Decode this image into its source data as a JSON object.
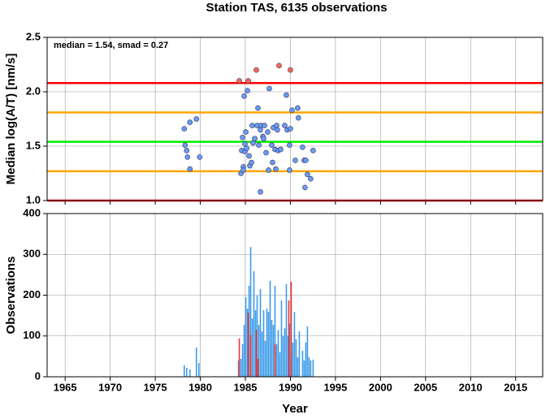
{
  "chart_data": [
    {
      "type": "scatter",
      "title": "Station TAS, 6135 observations",
      "ylabel": "Median log(A/T) [nm/s]",
      "annotation": "median = 1.54, smad = 0.27",
      "xlim": [
        1963,
        2018
      ],
      "xticks": [
        1965,
        1970,
        1975,
        1980,
        1985,
        1990,
        1995,
        2000,
        2005,
        2010,
        2015
      ],
      "ylim": [
        1.0,
        2.5
      ],
      "yticks": [
        {
          "value": 1.0,
          "label": "1.0"
        },
        1.5,
        {
          "value": 2.0,
          "label": "2.0"
        },
        2.5
      ],
      "grid": true,
      "hlines": [
        {
          "value": 2.08,
          "color": "#ff0000"
        },
        {
          "value": 1.81,
          "color": "#ffa500"
        },
        {
          "value": 1.54,
          "color": "#00ee00"
        },
        {
          "value": 1.27,
          "color": "#ffa500"
        },
        {
          "value": 1.0,
          "color": "#ff0000"
        }
      ],
      "series": [
        {
          "color": "#6a9cf5",
          "x": [
            1978.22,
            1978.31,
            1978.49,
            1978.58,
            1978.85,
            1978.85,
            1979.57,
            1979.93,
            1984.51,
            1984.6,
            1984.69,
            1984.78,
            1984.78,
            1984.87,
            1984.96,
            1984.96,
            1985.05,
            1985.14,
            1985.23,
            1985.41,
            1985.5,
            1985.68,
            1985.77,
            1985.86,
            1986.04,
            1986.31,
            1986.4,
            1986.49,
            1986.67,
            1986.67,
            1986.76,
            1986.94,
            1987.03,
            1987.12,
            1987.3,
            1987.48,
            1987.57,
            1987.66,
            1987.93,
            1988.02,
            1988.11,
            1988.29,
            1988.38,
            1988.47,
            1988.56,
            1988.65,
            1988.92,
            1989.37,
            1989.55,
            1989.64,
            1989.91,
            1989.91,
            1990.0,
            1990.18,
            1990.54,
            1990.81,
            1990.89,
            1991.35,
            1991.53,
            1991.62,
            1991.71,
            1991.89,
            1992.25,
            1992.52
          ],
          "values": [
            1.66,
            1.51,
            1.46,
            1.4,
            1.72,
            1.29,
            1.75,
            1.4,
            1.25,
            1.46,
            1.58,
            1.31,
            1.28,
            1.96,
            1.52,
            1.45,
            1.63,
            1.48,
            2.01,
            1.41,
            1.32,
            1.35,
            1.69,
            1.53,
            1.57,
            1.69,
            1.85,
            1.51,
            1.65,
            1.08,
            1.69,
            1.59,
            1.57,
            1.69,
            1.44,
            1.63,
            1.28,
            2.03,
            1.51,
            1.35,
            1.67,
            1.47,
            1.29,
            1.69,
            1.65,
            1.46,
            1.47,
            1.69,
            1.97,
            1.65,
            1.51,
            1.28,
            1.66,
            1.83,
            1.37,
            1.85,
            1.76,
            1.49,
            1.37,
            1.12,
            1.37,
            1.24,
            1.2,
            1.46
          ]
        },
        {
          "color": "#ff6655",
          "x": [
            1984.33,
            1985.32,
            1986.22,
            1988.74,
            1990.0
          ],
          "values": [
            2.1,
            2.1,
            2.2,
            2.24,
            2.2
          ]
        }
      ]
    },
    {
      "type": "bar",
      "ylabel": "Observations",
      "xlabel": "Year",
      "xlim": [
        1963,
        2018
      ],
      "xticks": [
        1965,
        1970,
        1975,
        1980,
        1985,
        1990,
        1995,
        2000,
        2005,
        2010,
        2015
      ],
      "ylim": [
        0,
        400
      ],
      "yticks": [
        0,
        100,
        200,
        300,
        400
      ],
      "grid": true,
      "series": [
        {
          "color": "#3d9be9",
          "x": [
            1978.22,
            1978.49,
            1978.85,
            1979.57,
            1979.84,
            1984.24,
            1984.51,
            1984.69,
            1984.87,
            1985.05,
            1985.23,
            1985.41,
            1985.59,
            1985.77,
            1985.95,
            1986.13,
            1986.31,
            1986.49,
            1986.67,
            1986.85,
            1987.03,
            1987.21,
            1987.39,
            1987.57,
            1987.75,
            1987.93,
            1988.11,
            1988.29,
            1988.47,
            1988.65,
            1988.83,
            1989.01,
            1989.19,
            1989.37,
            1989.55,
            1989.73,
            1989.91,
            1990.09,
            1990.27,
            1990.45,
            1990.63,
            1990.81,
            1990.99,
            1991.35,
            1991.53,
            1991.71,
            1991.89,
            1992.07,
            1992.25,
            1992.52
          ],
          "values": [
            28,
            22,
            18,
            72,
            34,
            40,
            44,
            80,
            127,
            195,
            167,
            223,
            318,
            143,
            259,
            163,
            199,
            127,
            215,
            111,
            163,
            88,
            167,
            159,
            235,
            139,
            127,
            223,
            80,
            115,
            60,
            187,
            100,
            119,
            227,
            100,
            131,
            60,
            84,
            159,
            92,
            48,
            111,
            64,
            40,
            84,
            123,
            48,
            40,
            42
          ]
        },
        {
          "color": "#ee3333",
          "x": [
            1984.33,
            1985.32,
            1985.59,
            1986.22,
            1986.4,
            1988.29,
            1989.82,
            1990.09
          ],
          "values": [
            94,
            157,
            103,
            115,
            44,
            80,
            187,
            233
          ]
        }
      ]
    }
  ]
}
